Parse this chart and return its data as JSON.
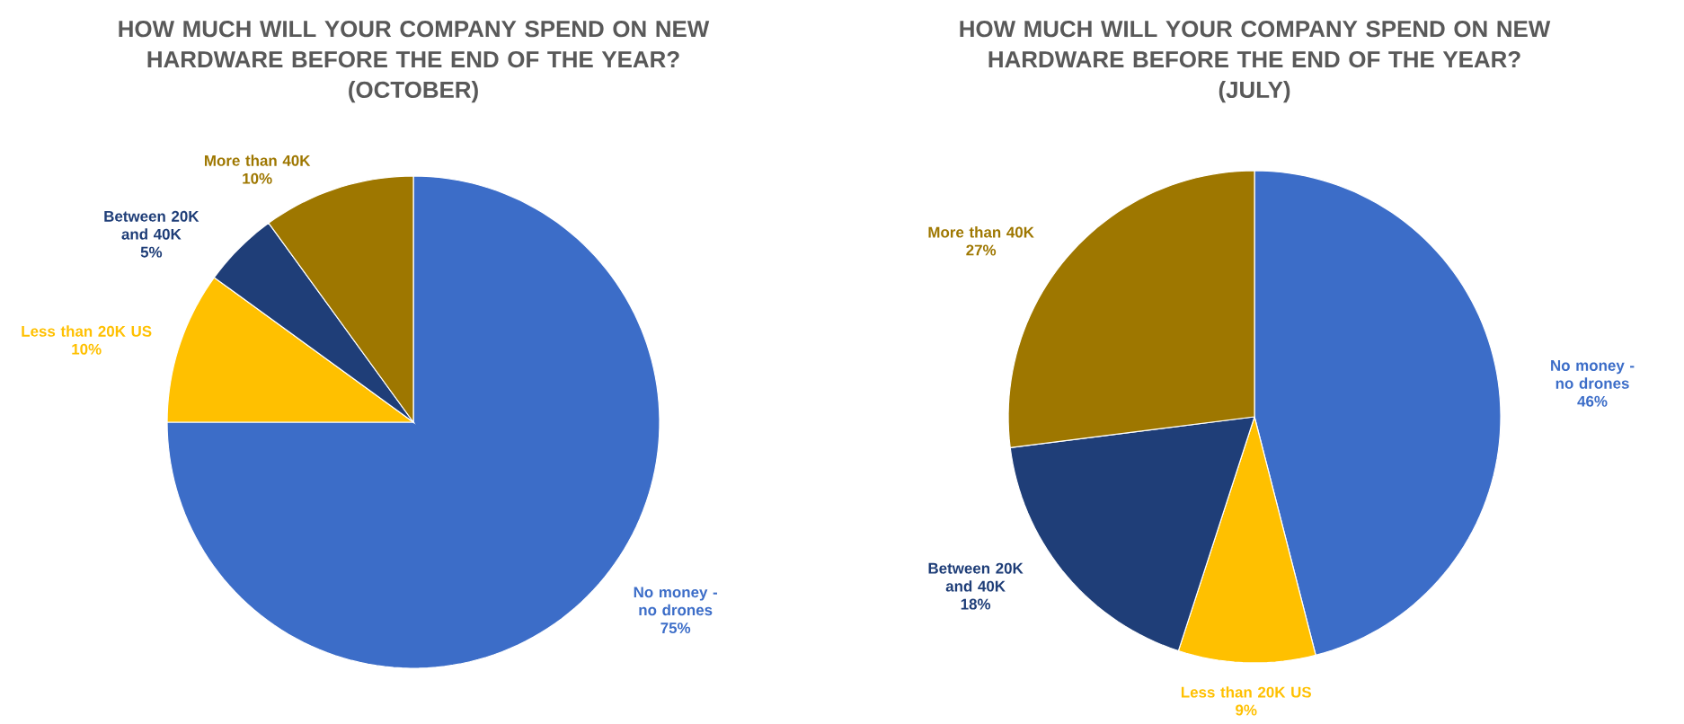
{
  "chart_data": [
    {
      "type": "pie",
      "title": "HOW MUCH WILL YOUR COMPANY SPEND ON NEW HARDWARE BEFORE THE END OF THE YEAR?",
      "subtitle": "(OCTOBER)",
      "categories": [
        "No money - no drones",
        "Less than 20K US",
        "Between 20K and 40K",
        "More than 40K"
      ],
      "values": [
        75,
        10,
        5,
        10
      ],
      "value_labels": [
        "75%",
        "10%",
        "5%",
        "10%"
      ],
      "colors": [
        "#3c6dc8",
        "#ffc000",
        "#1f3e78",
        "#9e7700"
      ]
    },
    {
      "type": "pie",
      "title": "HOW MUCH WILL YOUR COMPANY SPEND ON NEW HARDWARE BEFORE THE END OF THE YEAR?",
      "subtitle": "(JULY)",
      "categories": [
        "No money - no drones",
        "Less than 20K US",
        "Between 20K and 40K",
        "More than 40K"
      ],
      "values": [
        46,
        9,
        18,
        27
      ],
      "value_labels": [
        "46%",
        "9%",
        "18%",
        "27%"
      ],
      "colors": [
        "#3c6dc8",
        "#ffc000",
        "#1f3e78",
        "#9e7700"
      ]
    }
  ]
}
